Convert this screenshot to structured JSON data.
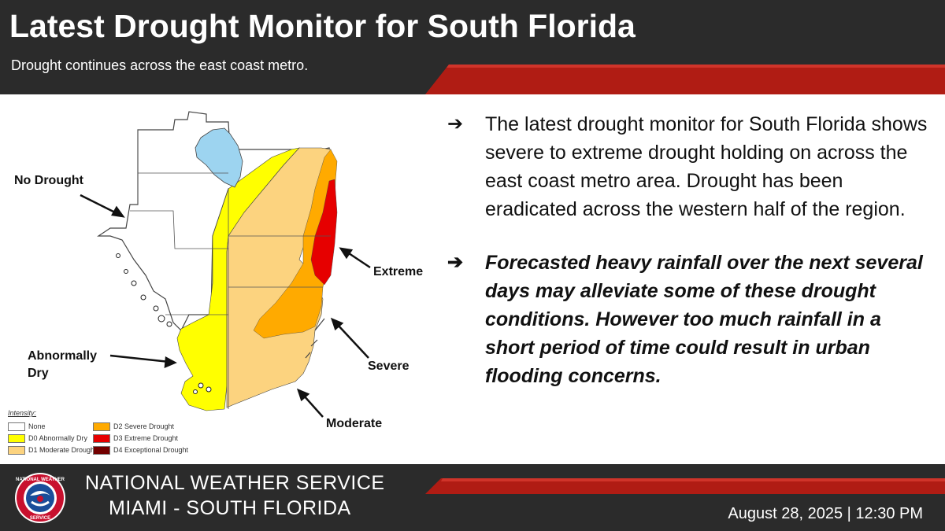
{
  "header": {
    "title": "Latest Drought Monitor for South Florida",
    "subtitle": "Drought continues across the east coast metro."
  },
  "map": {
    "labels": {
      "no_drought": "No Drought",
      "abnormally_dry_line1": "Abnormally",
      "abnormally_dry_line2": "Dry",
      "extreme": "Extreme",
      "severe": "Severe",
      "moderate": "Moderate"
    },
    "legend": {
      "title": "Intensity:",
      "items": [
        {
          "label": "None",
          "color": "#ffffff"
        },
        {
          "label": "D0 Abnormally Dry",
          "color": "#ffff00"
        },
        {
          "label": "D1 Moderate Drought",
          "color": "#fcd37f"
        },
        {
          "label": "D2 Severe Drought",
          "color": "#ffaa00"
        },
        {
          "label": "D3 Extreme Drought",
          "color": "#e60000"
        },
        {
          "label": "D4 Exceptional Drought",
          "color": "#730000"
        }
      ]
    },
    "colors": {
      "none": "#ffffff",
      "d0": "#ffff00",
      "d1": "#fcd37f",
      "d2": "#ffaa00",
      "d3": "#e60000",
      "lake": "#9dd4f0"
    }
  },
  "bullets": {
    "arrow_icon": "➔",
    "b1": "The latest drought monitor for South Florida shows severe to extreme drought holding on across the east coast metro area. Drought has been eradicated across the western half of the region.",
    "b2": "Forecasted heavy rainfall over the next several days may alleviate some of these drought conditions. However too much rainfall in a short period of time could result in urban flooding concerns."
  },
  "footer": {
    "org_line1": "NATIONAL WEATHER SERVICE",
    "org_line2": "MIAMI - SOUTH FLORIDA",
    "datetime": "August 28, 2025 | 12:30 PM",
    "logo": {
      "top_text": "NATIONAL WEATHER",
      "bottom_text": "SERVICE"
    }
  },
  "accent_color": "#b01c14"
}
